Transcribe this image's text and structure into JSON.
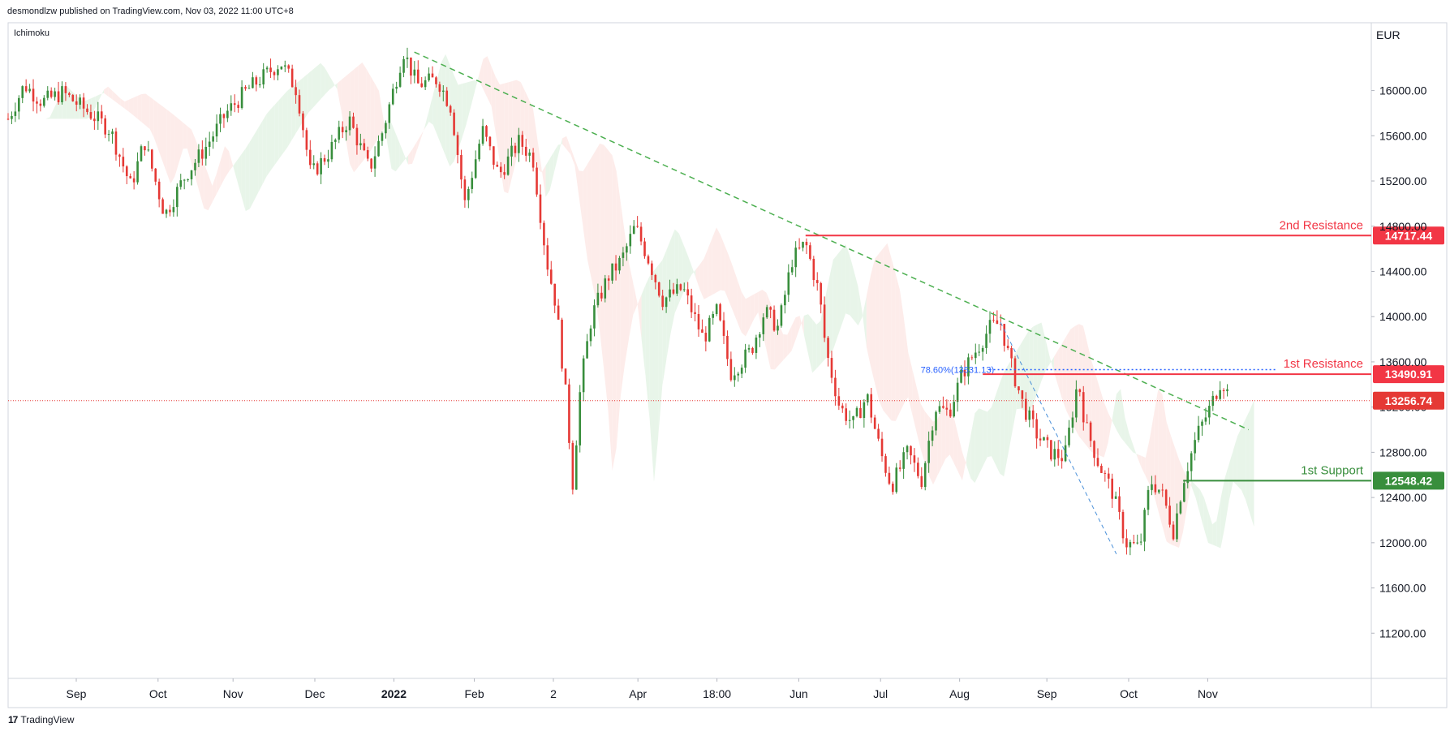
{
  "header": {
    "published": "desmondlzw published on TradingView.com, Nov 03, 2022 11:00 UTC+8"
  },
  "indicator": "Ichimoku",
  "footer": {
    "brand": "TradingView"
  },
  "colors": {
    "up": "#26a69a",
    "down": "#ef5350",
    "candle_up": "#388e3c",
    "candle_down": "#e53935",
    "resistance": "#f23645",
    "support": "#388e3c",
    "trendline": "#4caf50",
    "fib": "#2962ff",
    "cloud_green": "#e8f5e9",
    "cloud_red": "#fdecea",
    "axis_text": "#131722"
  },
  "chart_data": {
    "type": "candlestick",
    "currency": "EUR",
    "ylim": [
      10800,
      16600
    ],
    "y_ticks": [
      "11200.00",
      "11600.00",
      "12000.00",
      "12400.00",
      "12800.00",
      "13200.00",
      "13600.00",
      "14000.00",
      "14400.00",
      "14800.00",
      "15200.00",
      "15600.00",
      "16000.00"
    ],
    "x_ticks": [
      {
        "label": "Sep",
        "t": 0.05
      },
      {
        "label": "Oct",
        "t": 0.11
      },
      {
        "label": "Nov",
        "t": 0.165
      },
      {
        "label": "Dec",
        "t": 0.225
      },
      {
        "label": "2022",
        "t": 0.283,
        "bold": true
      },
      {
        "label": "Feb",
        "t": 0.342
      },
      {
        "label": "2",
        "t": 0.4
      },
      {
        "label": "Apr",
        "t": 0.462
      },
      {
        "label": "18:00",
        "t": 0.52
      },
      {
        "label": "Jun",
        "t": 0.58
      },
      {
        "label": "Jul",
        "t": 0.64
      },
      {
        "label": "Aug",
        "t": 0.698
      },
      {
        "label": "Sep",
        "t": 0.762
      },
      {
        "label": "Oct",
        "t": 0.822
      },
      {
        "label": "Nov",
        "t": 0.88
      }
    ],
    "price_path": [
      [
        0.0,
        15750
      ],
      [
        0.012,
        16050
      ],
      [
        0.025,
        15900
      ],
      [
        0.04,
        15980
      ],
      [
        0.06,
        15800
      ],
      [
        0.075,
        15650
      ],
      [
        0.09,
        15150
      ],
      [
        0.1,
        15550
      ],
      [
        0.115,
        14900
      ],
      [
        0.13,
        15250
      ],
      [
        0.145,
        15500
      ],
      [
        0.16,
        15800
      ],
      [
        0.175,
        16000
      ],
      [
        0.19,
        16150
      ],
      [
        0.2,
        16250
      ],
      [
        0.212,
        16000
      ],
      [
        0.222,
        15250
      ],
      [
        0.235,
        15450
      ],
      [
        0.25,
        15750
      ],
      [
        0.265,
        15300
      ],
      [
        0.275,
        15650
      ],
      [
        0.29,
        16350
      ],
      [
        0.3,
        16050
      ],
      [
        0.315,
        16100
      ],
      [
        0.325,
        15850
      ],
      [
        0.335,
        15000
      ],
      [
        0.348,
        15650
      ],
      [
        0.36,
        15250
      ],
      [
        0.375,
        15550
      ],
      [
        0.385,
        15400
      ],
      [
        0.395,
        14500
      ],
      [
        0.402,
        14100
      ],
      [
        0.41,
        13200
      ],
      [
        0.414,
        12500
      ],
      [
        0.42,
        13400
      ],
      [
        0.428,
        14000
      ],
      [
        0.44,
        14350
      ],
      [
        0.45,
        14500
      ],
      [
        0.46,
        14800
      ],
      [
        0.47,
        14500
      ],
      [
        0.48,
        14150
      ],
      [
        0.495,
        14250
      ],
      [
        0.51,
        13800
      ],
      [
        0.52,
        14050
      ],
      [
        0.53,
        13500
      ],
      [
        0.545,
        13700
      ],
      [
        0.555,
        14050
      ],
      [
        0.565,
        13900
      ],
      [
        0.575,
        14500
      ],
      [
        0.585,
        14650
      ],
      [
        0.595,
        14200
      ],
      [
        0.6,
        13700
      ],
      [
        0.61,
        13200
      ],
      [
        0.62,
        13050
      ],
      [
        0.63,
        13300
      ],
      [
        0.64,
        12800
      ],
      [
        0.648,
        12500
      ],
      [
        0.66,
        12800
      ],
      [
        0.67,
        12550
      ],
      [
        0.68,
        13200
      ],
      [
        0.69,
        13150
      ],
      [
        0.7,
        13500
      ],
      [
        0.71,
        13700
      ],
      [
        0.72,
        13900
      ],
      [
        0.728,
        13950
      ],
      [
        0.735,
        13600
      ],
      [
        0.745,
        13200
      ],
      [
        0.755,
        12950
      ],
      [
        0.765,
        12800
      ],
      [
        0.775,
        12750
      ],
      [
        0.785,
        13450
      ],
      [
        0.79,
        13050
      ],
      [
        0.8,
        12700
      ],
      [
        0.81,
        12450
      ],
      [
        0.82,
        12000
      ],
      [
        0.83,
        11950
      ],
      [
        0.838,
        12550
      ],
      [
        0.846,
        12450
      ],
      [
        0.855,
        12100
      ],
      [
        0.862,
        12550
      ],
      [
        0.872,
        12950
      ],
      [
        0.882,
        13200
      ],
      [
        0.89,
        13450
      ],
      [
        0.897,
        13260
      ]
    ],
    "trendline_main": {
      "from": [
        0.298,
        16340
      ],
      "to": [
        0.91,
        13000
      ]
    },
    "trendline_fib": {
      "from": [
        0.728,
        13950
      ],
      "to": [
        0.813,
        11900
      ]
    },
    "fib_level": {
      "label": "78.60%(13531.13)",
      "value": 13531.13,
      "from": 0.72,
      "to": 0.93
    },
    "levels": [
      {
        "name": "2nd Resistance",
        "value": 14717.44,
        "price_label": "14717.44",
        "kind": "resistance",
        "from": 0.585
      },
      {
        "name": "1st Resistance",
        "value": 13490.91,
        "price_label": "13490.91",
        "kind": "resistance",
        "from": 0.715
      },
      {
        "name": "1st Support",
        "value": 12548.42,
        "price_label": "12548.42",
        "kind": "support",
        "from": 0.862
      }
    ],
    "last_price": {
      "value": 13256.74,
      "price_label": "13256.74"
    }
  }
}
